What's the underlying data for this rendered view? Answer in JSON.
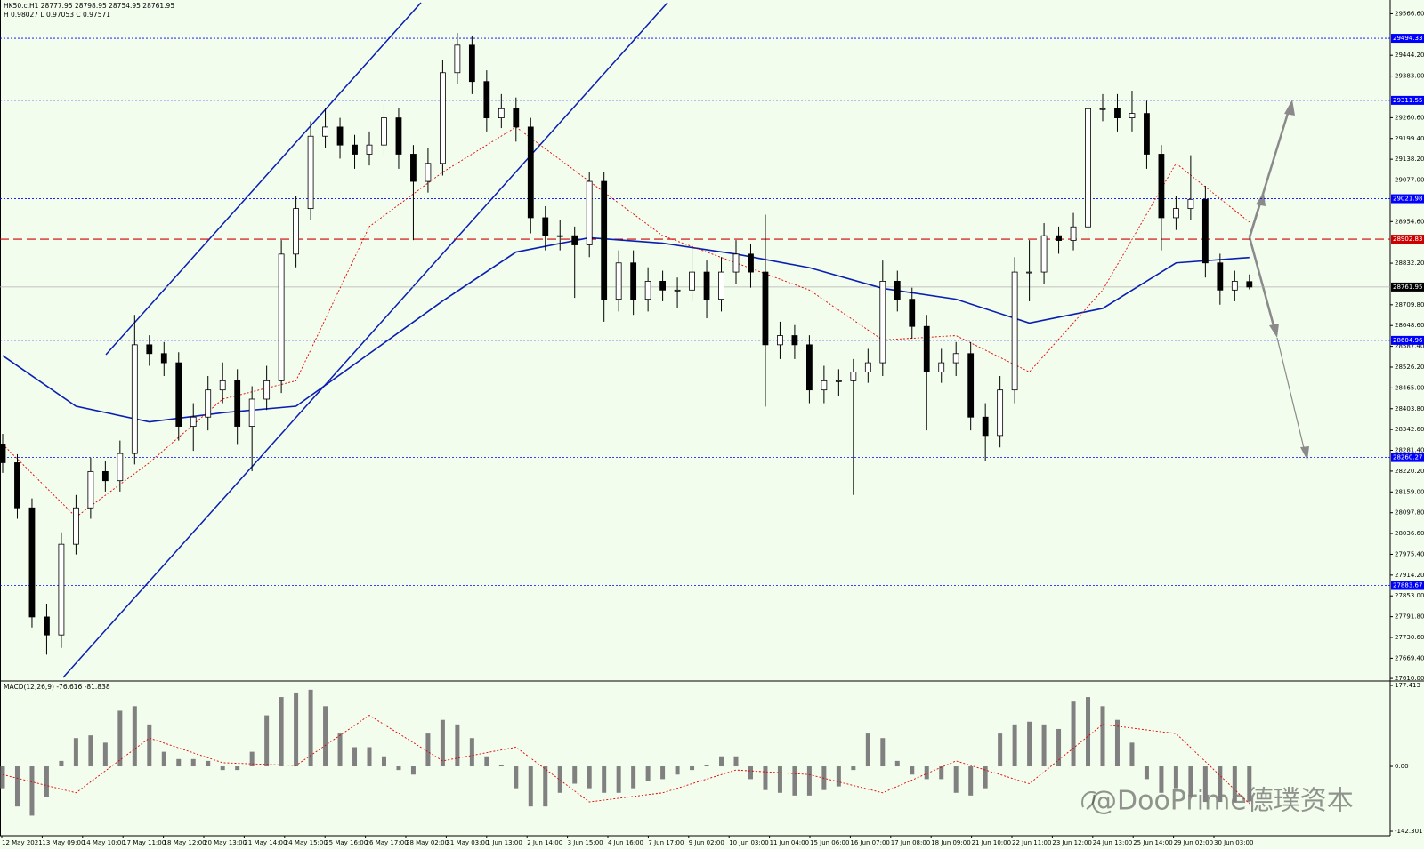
{
  "chart_data": {
    "type": "candlestick",
    "header": "HK50.c,H1  28777.95 28798.95 28754.95 28761.95",
    "header2": "H 0.98027 L 0.97053 C 0.97571",
    "watermark": "@DooPrime德璞资本",
    "up_color": "#ffffff",
    "down_color": "#000000",
    "ylim": [
      27605,
      29607
    ],
    "yticks": [
      {
        "value": 29566.6,
        "label": "29566.60"
      },
      {
        "value": 29444.2,
        "label": "29444.20"
      },
      {
        "value": 29383.0,
        "label": "29383.00"
      },
      {
        "value": 29260.6,
        "label": "29260.60"
      },
      {
        "value": 29199.4,
        "label": "29199.40"
      },
      {
        "value": 29138.2,
        "label": "29138.20"
      },
      {
        "value": 29077.0,
        "label": "29077.00"
      },
      {
        "value": 28954.6,
        "label": "28954.60"
      },
      {
        "value": 28832.2,
        "label": "28832.20"
      },
      {
        "value": 28709.8,
        "label": "28709.80"
      },
      {
        "value": 28648.6,
        "label": "28648.60"
      },
      {
        "value": 28587.4,
        "label": "28587.40"
      },
      {
        "value": 28526.2,
        "label": "28526.20"
      },
      {
        "value": 28465.0,
        "label": "28465.00"
      },
      {
        "value": 28403.8,
        "label": "28403.80"
      },
      {
        "value": 28342.6,
        "label": "28342.60"
      },
      {
        "value": 28281.4,
        "label": "28281.40"
      },
      {
        "value": 28220.2,
        "label": "28220.20"
      },
      {
        "value": 28159.0,
        "label": "28159.00"
      },
      {
        "value": 28097.8,
        "label": "28097.80"
      },
      {
        "value": 28036.6,
        "label": "28036.60"
      },
      {
        "value": 27975.4,
        "label": "27975.40"
      },
      {
        "value": 27914.2,
        "label": "27914.20"
      },
      {
        "value": 27853.0,
        "label": "27853.00"
      },
      {
        "value": 27791.8,
        "label": "27791.80"
      },
      {
        "value": 27730.6,
        "label": "27730.60"
      },
      {
        "value": 27669.4,
        "label": "27669.40"
      },
      {
        "value": 27610.0,
        "label": "27610.00"
      }
    ],
    "levels": [
      29494.33,
      29311.55,
      29021.98,
      28604.96,
      28260.27,
      27883.67
    ],
    "level_color": "#0000ff",
    "resistance": 28902.83,
    "resistance_color": "#cc0000",
    "last_price": 28761.95,
    "categories": [
      "12 May 2021",
      "13 May 09:00",
      "14 May 10:00",
      "17 May 11:00",
      "18 May 12:00",
      "20 May 13:00",
      "21 May 14:00",
      "24 May 15:00",
      "25 May 16:00",
      "26 May 17:00",
      "28 May 02:00",
      "31 May 03:00",
      "1 Jun 13:00",
      "2 Jun 14:00",
      "3 Jun 15:00",
      "4 Jun 16:00",
      "7 Jun 17:00",
      "9 Jun 02:00",
      "10 Jun 03:00",
      "11 Jun 04:00",
      "15 Jun 06:00",
      "16 Jun 07:00",
      "17 Jun 08:00",
      "18 Jun 09:00",
      "21 Jun 10:00",
      "22 Jun 11:00",
      "23 Jun 12:00",
      "24 Jun 13:00",
      "25 Jun 14:00",
      "29 Jun 02:00",
      "30 Jun 03:00"
    ],
    "ohlc": [
      [
        28300,
        28330,
        28215,
        28245
      ],
      [
        28245,
        28270,
        28080,
        28112
      ],
      [
        28112,
        28140,
        27760,
        27791
      ],
      [
        27791,
        27830,
        27680,
        27738
      ],
      [
        27738,
        28040,
        27700,
        28005
      ],
      [
        28005,
        28150,
        27975,
        28112
      ],
      [
        28112,
        28260,
        28080,
        28219
      ],
      [
        28219,
        28250,
        28160,
        28192
      ],
      [
        28192,
        28310,
        28160,
        28272
      ],
      [
        28272,
        28680,
        28240,
        28592
      ],
      [
        28592,
        28620,
        28530,
        28566
      ],
      [
        28566,
        28600,
        28500,
        28539
      ],
      [
        28539,
        28570,
        28310,
        28352
      ],
      [
        28352,
        28420,
        28280,
        28379
      ],
      [
        28379,
        28500,
        28340,
        28459
      ],
      [
        28459,
        28540,
        28420,
        28486
      ],
      [
        28486,
        28520,
        28300,
        28352
      ],
      [
        28352,
        28470,
        28220,
        28432
      ],
      [
        28432,
        28530,
        28400,
        28486
      ],
      [
        28486,
        28900,
        28450,
        28859
      ],
      [
        28859,
        29030,
        28820,
        28993
      ],
      [
        28993,
        29250,
        28960,
        29206
      ],
      [
        29206,
        29290,
        29170,
        29233
      ],
      [
        29233,
        29260,
        29140,
        29180
      ],
      [
        29180,
        29210,
        29110,
        29153
      ],
      [
        29153,
        29220,
        29120,
        29180
      ],
      [
        29180,
        29300,
        29150,
        29260
      ],
      [
        29260,
        29290,
        29110,
        29153
      ],
      [
        29153,
        29180,
        28900,
        29073
      ],
      [
        29073,
        29170,
        29040,
        29126
      ],
      [
        29126,
        29430,
        29090,
        29393
      ],
      [
        29393,
        29510,
        29360,
        29474
      ],
      [
        29474,
        29500,
        29330,
        29367
      ],
      [
        29367,
        29400,
        29220,
        29260
      ],
      [
        29260,
        29330,
        29230,
        29287
      ],
      [
        29287,
        29320,
        29190,
        29233
      ],
      [
        29233,
        29260,
        28920,
        28966
      ],
      [
        28966,
        29000,
        28870,
        28913
      ],
      [
        28913,
        28960,
        28870,
        28913
      ],
      [
        28913,
        28940,
        28730,
        28886
      ],
      [
        28886,
        29100,
        28850,
        29073
      ],
      [
        29073,
        29100,
        28660,
        28726
      ],
      [
        28726,
        28870,
        28690,
        28833
      ],
      [
        28833,
        28870,
        28680,
        28726
      ],
      [
        28726,
        28820,
        28690,
        28779
      ],
      [
        28779,
        28810,
        28720,
        28753
      ],
      [
        28753,
        28790,
        28700,
        28753
      ],
      [
        28753,
        28890,
        28720,
        28806
      ],
      [
        28806,
        28840,
        28670,
        28726
      ],
      [
        28726,
        28850,
        28690,
        28806
      ],
      [
        28806,
        28900,
        28770,
        28859
      ],
      [
        28859,
        28890,
        28760,
        28806
      ],
      [
        28806,
        28975,
        28410,
        28592
      ],
      [
        28592,
        28660,
        28550,
        28619
      ],
      [
        28619,
        28650,
        28550,
        28592
      ],
      [
        28592,
        28620,
        28420,
        28459
      ],
      [
        28459,
        28530,
        28420,
        28486
      ],
      [
        28486,
        28520,
        28440,
        28486
      ],
      [
        28486,
        28550,
        28150,
        28512
      ],
      [
        28512,
        28580,
        28480,
        28539
      ],
      [
        28539,
        28840,
        28500,
        28779
      ],
      [
        28779,
        28810,
        28690,
        28726
      ],
      [
        28726,
        28760,
        28610,
        28646
      ],
      [
        28646,
        28680,
        28340,
        28512
      ],
      [
        28512,
        28580,
        28480,
        28539
      ],
      [
        28539,
        28600,
        28500,
        28566
      ],
      [
        28566,
        28600,
        28340,
        28379
      ],
      [
        28379,
        28420,
        28250,
        28325
      ],
      [
        28325,
        28500,
        28290,
        28459
      ],
      [
        28459,
        28850,
        28420,
        28806
      ],
      [
        28806,
        28900,
        28720,
        28806
      ],
      [
        28806,
        28950,
        28770,
        28913
      ],
      [
        28913,
        28940,
        28860,
        28899
      ],
      [
        28899,
        28980,
        28870,
        28939
      ],
      [
        28939,
        29320,
        28900,
        29287
      ],
      [
        29287,
        29330,
        29250,
        29287
      ],
      [
        29287,
        29330,
        29220,
        29260
      ],
      [
        29260,
        29340,
        29220,
        29273
      ],
      [
        29273,
        29310,
        29110,
        29153
      ],
      [
        29153,
        29180,
        28870,
        28966
      ],
      [
        28966,
        29030,
        28930,
        28993
      ],
      [
        28993,
        29150,
        28960,
        29020
      ],
      [
        29020,
        29060,
        28790,
        28833
      ],
      [
        28833,
        28860,
        28710,
        28753
      ],
      [
        28753,
        28810,
        28720,
        28779
      ],
      [
        28777.95,
        28798.95,
        28754.95,
        28761.95
      ]
    ],
    "ma_slow": {
      "color": "#0a1fb0",
      "x": [
        0,
        5,
        10,
        15,
        20,
        25,
        30,
        35,
        40,
        45,
        50,
        55,
        60,
        65,
        70,
        75,
        80,
        85
      ],
      "values": [
        28560,
        28411,
        28365,
        28392,
        28411,
        28566,
        28721,
        28865,
        28907,
        28891,
        28859,
        28819,
        28758,
        28726,
        28656,
        28699,
        28833,
        28849
      ]
    },
    "ma_fast": {
      "color": "#e00000",
      "x": [
        0,
        5,
        10,
        15,
        20,
        25,
        30,
        35,
        40,
        45,
        50,
        55,
        60,
        65,
        70,
        75,
        80,
        85
      ],
      "values": [
        28299,
        28085,
        28245,
        28432,
        28486,
        28940,
        29100,
        29233,
        29073,
        28913,
        28833,
        28753,
        28606,
        28619,
        28512,
        28753,
        29126,
        28953
      ]
    },
    "macd": {
      "title": "MACD(12,26,9) -76.616 -81.838",
      "color": "#808080",
      "ylim": [
        -152,
        183.3
      ],
      "yticks": [
        177.413,
        {
          "value": 0,
          "label": "0.00"
        },
        -142.301
      ],
      "values": [
        -48,
        -88,
        -108,
        -68,
        12,
        62,
        68,
        52,
        122,
        132,
        92,
        32,
        16,
        16,
        12,
        -8,
        -8,
        32,
        112,
        152,
        162,
        168,
        132,
        72,
        42,
        42,
        22,
        -8,
        -18,
        72,
        102,
        92,
        62,
        22,
        2,
        -48,
        -88,
        -88,
        -58,
        -38,
        -48,
        -58,
        -58,
        -48,
        -32,
        -28,
        -18,
        -8,
        2,
        22,
        22,
        -28,
        -52,
        -58,
        -64,
        -64,
        -52,
        -44,
        -8,
        72,
        62,
        12,
        -18,
        -28,
        -28,
        -58,
        -64,
        -48,
        72,
        92,
        98,
        92,
        82,
        142,
        152,
        132,
        102,
        52,
        -28,
        -58,
        -48,
        -68,
        -78,
        -78,
        -78,
        -76.616
      ],
      "signal": {
        "color": "#e00000",
        "x": [
          0,
          5,
          10,
          15,
          20,
          25,
          30,
          35,
          40,
          45,
          50,
          55,
          60,
          65,
          70,
          75,
          80,
          85
        ],
        "values": [
          -18,
          -58,
          62,
          8,
          2,
          112,
          12,
          42,
          -78,
          -58,
          -8,
          -18,
          -58,
          12,
          -38,
          92,
          72,
          -81.838
        ]
      }
    }
  }
}
